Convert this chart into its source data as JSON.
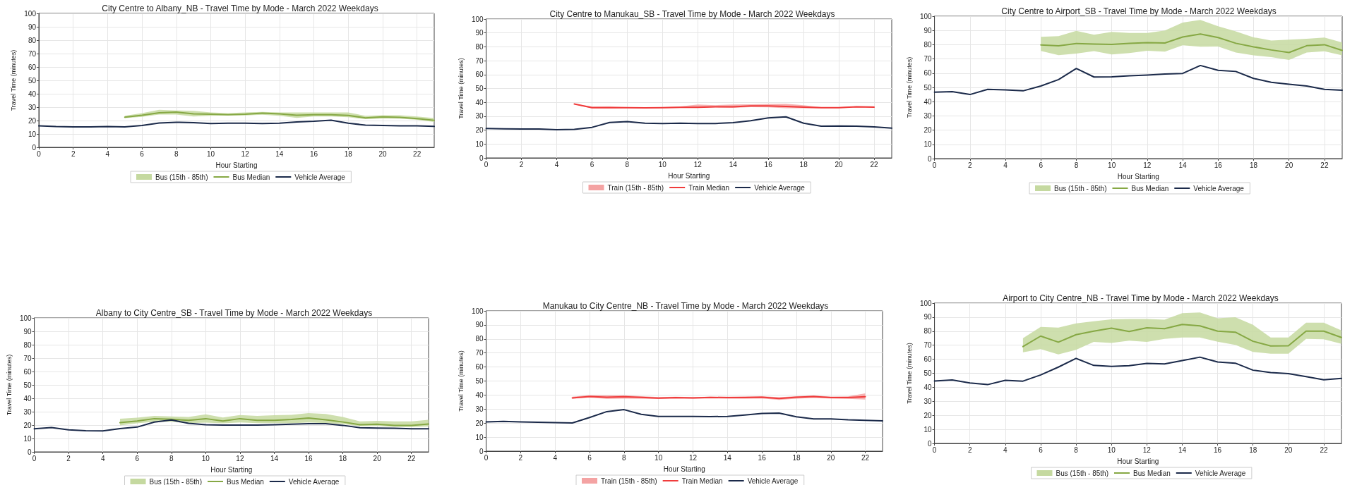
{
  "chart_data": [
    {
      "type": "line",
      "title": "City Centre to Albany_NB - Travel Time by Mode - March 2022 Weekdays",
      "xlabel": "Hour Starting",
      "ylabel": "Travel Time (minutes)",
      "xlim": [
        0,
        23
      ],
      "xticks": [
        0,
        2,
        4,
        6,
        8,
        10,
        12,
        14,
        16,
        18,
        20,
        22
      ],
      "ylim": [
        0,
        100
      ],
      "yticks": [
        0,
        10,
        20,
        30,
        40,
        50,
        60,
        70,
        80,
        90,
        100
      ],
      "grid": true,
      "legend": "bottom",
      "x": [
        0,
        1,
        2,
        3,
        4,
        5,
        6,
        7,
        8,
        9,
        10,
        11,
        12,
        13,
        14,
        15,
        16,
        17,
        18,
        19,
        20,
        21,
        22,
        23
      ],
      "series": [
        {
          "name": "Bus (15th - 85th)",
          "type": "area",
          "color": "#c5d9a0",
          "x": [
            5,
            6,
            7,
            8,
            9,
            10,
            11,
            12,
            13,
            14,
            15,
            16,
            17,
            18,
            19,
            20,
            21,
            22,
            23
          ],
          "values": [
            null,
            null,
            null,
            null,
            null,
            null,
            null,
            null,
            null,
            null,
            null,
            null,
            null,
            null,
            null,
            null,
            null,
            null,
            null
          ],
          "lower": [
            21.8,
            22.8,
            24.5,
            24.5,
            23,
            23.5,
            23.8,
            23.8,
            24.3,
            23.5,
            22,
            23,
            23,
            22.5,
            21,
            21.5,
            21.5,
            20.5,
            19
          ],
          "upper": [
            23.5,
            25.5,
            28,
            27.5,
            27.3,
            26,
            25.5,
            26,
            26.5,
            26,
            26,
            26,
            26,
            26,
            23.5,
            24,
            24,
            23,
            21.8
          ]
        },
        {
          "name": "Bus Median",
          "type": "line",
          "color": "#86a844",
          "x": [
            5,
            6,
            7,
            8,
            9,
            10,
            11,
            12,
            13,
            14,
            15,
            16,
            17,
            18,
            19,
            20,
            21,
            22,
            23
          ],
          "values": [
            22.5,
            24,
            25.8,
            26.3,
            25,
            24.8,
            24.4,
            24.8,
            25.5,
            25,
            24,
            24.4,
            24.4,
            23.8,
            22,
            22.8,
            22.4,
            21.5,
            20.2
          ]
        },
        {
          "name": "Vehicle Average",
          "type": "line",
          "color": "#1b2a4a",
          "values": [
            16,
            15.5,
            15.3,
            15.3,
            15.5,
            15.2,
            16.3,
            18.2,
            18.7,
            18.4,
            17.8,
            18,
            18,
            17.8,
            18,
            19,
            19.5,
            20.3,
            18,
            16.6,
            16.3,
            16.1,
            16,
            15.6
          ]
        }
      ]
    },
    {
      "type": "line",
      "title": "City Centre to Manukau_SB - Travel Time by Mode - March 2022 Weekdays",
      "xlabel": "Hour Starting",
      "ylabel": "Travel Time (minutes)",
      "xlim": [
        0,
        23
      ],
      "xticks": [
        0,
        2,
        4,
        6,
        8,
        10,
        12,
        14,
        16,
        18,
        20,
        22
      ],
      "ylim": [
        0,
        100
      ],
      "yticks": [
        0,
        10,
        20,
        30,
        40,
        50,
        60,
        70,
        80,
        90,
        100
      ],
      "grid": true,
      "legend": "bottom",
      "x": [
        0,
        1,
        2,
        3,
        4,
        5,
        6,
        7,
        8,
        9,
        10,
        11,
        12,
        13,
        14,
        15,
        16,
        17,
        18,
        19,
        20,
        21,
        22,
        23
      ],
      "series": [
        {
          "name": "Train (15th - 85th)",
          "type": "area",
          "color": "#f4a3a3",
          "x": [
            5,
            6,
            7,
            8,
            9,
            10,
            11,
            12,
            13,
            14,
            15,
            16,
            17,
            18,
            19,
            20,
            21,
            22
          ],
          "values": [
            null,
            null,
            null,
            null,
            null,
            null,
            null,
            null,
            null,
            null,
            null,
            null,
            null,
            null,
            null,
            null,
            null,
            null
          ],
          "lower": [
            38.6,
            35.6,
            35.5,
            35.8,
            35.8,
            35.8,
            36,
            36,
            36.4,
            36,
            36.6,
            36.4,
            35.8,
            35.8,
            35.8,
            35.8,
            36.3,
            36.2
          ],
          "upper": [
            38.8,
            37,
            37.2,
            36.6,
            36.2,
            36.5,
            37,
            38.5,
            38,
            38.4,
            38.6,
            38.8,
            39,
            37.9,
            36.6,
            36.5,
            37.2,
            37.2
          ]
        },
        {
          "name": "Train Median",
          "type": "line",
          "color": "#f03c3c",
          "x": [
            5,
            6,
            7,
            8,
            9,
            10,
            11,
            12,
            13,
            14,
            15,
            16,
            17,
            18,
            19,
            20,
            21,
            22
          ],
          "values": [
            38.8,
            36.2,
            36.2,
            36.2,
            36,
            36.2,
            36.4,
            36.4,
            36.8,
            36.8,
            37.4,
            37.4,
            37,
            36.6,
            36.2,
            36.2,
            36.8,
            36.6
          ]
        },
        {
          "name": "Vehicle Average",
          "type": "line",
          "color": "#1b2a4a",
          "values": [
            21.2,
            21,
            20.8,
            20.8,
            20.3,
            20.6,
            22,
            25.5,
            26.2,
            25,
            24.8,
            25,
            24.8,
            24.8,
            25.4,
            26.8,
            28.8,
            29.6,
            25,
            22.8,
            23,
            22.8,
            22.3,
            21.4
          ]
        }
      ]
    },
    {
      "type": "line",
      "title": "City Centre to Airport_SB - Travel Time by Mode - March 2022 Weekdays",
      "xlabel": "Hour Starting",
      "ylabel": "Travel Time (minutes)",
      "xlim": [
        0,
        23
      ],
      "xticks": [
        0,
        2,
        4,
        6,
        8,
        10,
        12,
        14,
        16,
        18,
        20,
        22
      ],
      "ylim": [
        0,
        100
      ],
      "yticks": [
        0,
        10,
        20,
        30,
        40,
        50,
        60,
        70,
        80,
        90,
        100
      ],
      "grid": true,
      "legend": "bottom",
      "x": [
        0,
        1,
        2,
        3,
        4,
        5,
        6,
        7,
        8,
        9,
        10,
        11,
        12,
        13,
        14,
        15,
        16,
        17,
        18,
        19,
        20,
        21,
        22,
        23
      ],
      "series": [
        {
          "name": "Bus (15th - 85th)",
          "type": "area",
          "color": "#c5d9a0",
          "x": [
            6,
            7,
            8,
            9,
            10,
            11,
            12,
            13,
            14,
            15,
            16,
            17,
            18,
            19,
            20,
            21,
            22,
            23
          ],
          "values": [
            null,
            null,
            null,
            null,
            null,
            null,
            null,
            null,
            null,
            null,
            null,
            null,
            null,
            null,
            null,
            null,
            null,
            null
          ],
          "lower": [
            75.6,
            72.6,
            73.8,
            75.5,
            73.2,
            74.1,
            75.8,
            75.1,
            79.6,
            78.6,
            78.7,
            74.5,
            72.5,
            71.3,
            69.3,
            74.5,
            75.4,
            72.5
          ],
          "upper": [
            85.5,
            86,
            89.7,
            87,
            89,
            88.3,
            88.3,
            90,
            95.5,
            97.4,
            93,
            89.3,
            85.2,
            82.9,
            83.5,
            84.2,
            85,
            81.5
          ]
        },
        {
          "name": "Bus Median",
          "type": "line",
          "color": "#86a844",
          "x": [
            6,
            7,
            8,
            9,
            10,
            11,
            12,
            13,
            14,
            15,
            16,
            17,
            18,
            19,
            20,
            21,
            22,
            23
          ],
          "values": [
            79.8,
            79.2,
            80.8,
            80.4,
            80.2,
            81,
            81.4,
            81.2,
            85.4,
            87.5,
            85,
            81,
            78.5,
            76.3,
            74.5,
            79.3,
            80,
            76
          ]
        },
        {
          "name": "Vehicle Average",
          "type": "line",
          "color": "#1b2a4a",
          "values": [
            46.7,
            47,
            45,
            48.6,
            48.3,
            47.6,
            51,
            55.5,
            63.3,
            57.3,
            57.4,
            58.2,
            58.7,
            59.4,
            59.8,
            65.4,
            62,
            61.2,
            56.3,
            53.6,
            52.2,
            51,
            48.6,
            48
          ]
        }
      ]
    },
    {
      "type": "line",
      "title": "Albany to City Centre_SB - Travel Time by Mode - March 2022 Weekdays",
      "xlabel": "Hour Starting",
      "ylabel": "Travel Time (minutes)",
      "xlim": [
        0,
        23
      ],
      "xticks": [
        0,
        2,
        4,
        6,
        8,
        10,
        12,
        14,
        16,
        18,
        20,
        22
      ],
      "ylim": [
        0,
        100
      ],
      "yticks": [
        0,
        10,
        20,
        30,
        40,
        50,
        60,
        70,
        80,
        90,
        100
      ],
      "grid": true,
      "legend": "bottom",
      "x": [
        0,
        1,
        2,
        3,
        4,
        5,
        6,
        7,
        8,
        9,
        10,
        11,
        12,
        13,
        14,
        15,
        16,
        17,
        18,
        19,
        20,
        21,
        22,
        23
      ],
      "series": [
        {
          "name": "Bus (15th - 85th)",
          "type": "area",
          "color": "#c5d9a0",
          "x": [
            5,
            6,
            7,
            8,
            9,
            10,
            11,
            12,
            13,
            14,
            15,
            16,
            17,
            18,
            19,
            20,
            21,
            22,
            23
          ],
          "values": [
            null,
            null,
            null,
            null,
            null,
            null,
            null,
            null,
            null,
            null,
            null,
            null,
            null,
            null,
            null,
            null,
            null,
            null,
            null
          ],
          "lower": [
            19.8,
            21.3,
            22.5,
            22.5,
            21.5,
            21.8,
            21.3,
            22,
            21.5,
            21.5,
            21.3,
            22,
            21.5,
            20.8,
            19.2,
            19.4,
            18.7,
            18.5,
            19
          ],
          "upper": [
            24.8,
            25.5,
            26.8,
            26.5,
            26,
            28,
            25.6,
            27.5,
            26.8,
            27.4,
            27.6,
            29,
            28.3,
            26,
            22.7,
            23.2,
            22.7,
            22.7,
            24
          ]
        },
        {
          "name": "Bus Median",
          "type": "line",
          "color": "#86a844",
          "x": [
            5,
            6,
            7,
            8,
            9,
            10,
            11,
            12,
            13,
            14,
            15,
            16,
            17,
            18,
            19,
            20,
            21,
            22,
            23
          ],
          "values": [
            21.8,
            23,
            24.8,
            24.3,
            23.6,
            24.8,
            23,
            24.8,
            23.6,
            23.6,
            24.2,
            25.3,
            24,
            22.3,
            20.3,
            20.7,
            19.7,
            19.7,
            20.8
          ]
        },
        {
          "name": "Vehicle Average",
          "type": "line",
          "color": "#1b2a4a",
          "values": [
            17.2,
            18.2,
            16.4,
            15.8,
            15.7,
            17.4,
            18.5,
            22.2,
            23.8,
            21.3,
            20.2,
            20,
            20,
            20,
            20.2,
            20.6,
            21,
            21,
            19.8,
            18,
            17.8,
            17.6,
            17.2,
            17.2
          ]
        }
      ]
    },
    {
      "type": "line",
      "title": "Manukau to City Centre_NB - Travel Time by Mode - March 2022 Weekdays",
      "xlabel": "Hour Starting",
      "ylabel": "Travel Time (minutes)",
      "xlim": [
        0,
        23
      ],
      "xticks": [
        0,
        2,
        4,
        6,
        8,
        10,
        12,
        14,
        16,
        18,
        20,
        22
      ],
      "ylim": [
        0,
        100
      ],
      "yticks": [
        0,
        10,
        20,
        30,
        40,
        50,
        60,
        70,
        80,
        90,
        100
      ],
      "grid": true,
      "legend": "bottom",
      "x": [
        0,
        1,
        2,
        3,
        4,
        5,
        6,
        7,
        8,
        9,
        10,
        11,
        12,
        13,
        14,
        15,
        16,
        17,
        18,
        19,
        20,
        21,
        22,
        23
      ],
      "series": [
        {
          "name": "Train (15th - 85th)",
          "type": "area",
          "color": "#f4a3a3",
          "x": [
            5,
            6,
            7,
            8,
            9,
            10,
            11,
            12,
            13,
            14,
            15,
            16,
            17,
            18,
            19,
            20,
            21,
            22
          ],
          "values": [
            null,
            null,
            null,
            null,
            null,
            null,
            null,
            null,
            null,
            null,
            null,
            null,
            null,
            null,
            null,
            null,
            null,
            null
          ],
          "lower": [
            37.5,
            38.2,
            37.3,
            37.5,
            37.4,
            37.2,
            37.5,
            37.4,
            37.6,
            37.5,
            37.5,
            37.6,
            36.6,
            37.5,
            38,
            37.6,
            37.3,
            36.8
          ],
          "upper": [
            38.8,
            40,
            39.8,
            39.8,
            39.2,
            38.6,
            38.8,
            38.6,
            38.8,
            38.8,
            39.1,
            39.2,
            38.5,
            39.2,
            39.7,
            38.9,
            39.1,
            41.2
          ]
        },
        {
          "name": "Train Median",
          "type": "line",
          "color": "#f03c3c",
          "x": [
            5,
            6,
            7,
            8,
            9,
            10,
            11,
            12,
            13,
            14,
            15,
            16,
            17,
            18,
            19,
            20,
            21,
            22
          ],
          "values": [
            38,
            39,
            38.5,
            38.8,
            38.3,
            37.8,
            38.2,
            38,
            38.3,
            38.2,
            38.2,
            38.4,
            37.6,
            38.4,
            39,
            38.2,
            38.2,
            38.8
          ]
        },
        {
          "name": "Vehicle Average",
          "type": "line",
          "color": "#1b2a4a",
          "values": [
            20.8,
            21.2,
            20.9,
            20.6,
            20.3,
            20.1,
            24,
            28.2,
            29.6,
            26.3,
            24.8,
            24.8,
            24.7,
            24.6,
            24.8,
            25.8,
            26.9,
            27.1,
            24.5,
            23,
            23,
            22.3,
            22,
            21.6
          ]
        }
      ]
    },
    {
      "type": "line",
      "title": "Airport to City Centre_NB - Travel Time by Mode - March 2022 Weekdays",
      "xlabel": "Hour Starting",
      "ylabel": "Travel Time (minutes)",
      "xlim": [
        0,
        23
      ],
      "xticks": [
        0,
        2,
        4,
        6,
        8,
        10,
        12,
        14,
        16,
        18,
        20,
        22
      ],
      "ylim": [
        0,
        100
      ],
      "yticks": [
        0,
        10,
        20,
        30,
        40,
        50,
        60,
        70,
        80,
        90,
        100
      ],
      "grid": true,
      "legend": "bottom",
      "x": [
        0,
        1,
        2,
        3,
        4,
        5,
        6,
        7,
        8,
        9,
        10,
        11,
        12,
        13,
        14,
        15,
        16,
        17,
        18,
        19,
        20,
        21,
        22,
        23
      ],
      "series": [
        {
          "name": "Bus (15th - 85th)",
          "type": "area",
          "color": "#c5d9a0",
          "x": [
            5,
            6,
            7,
            8,
            9,
            10,
            11,
            12,
            13,
            14,
            15,
            16,
            17,
            18,
            19,
            20,
            21,
            22,
            23
          ],
          "values": [
            null,
            null,
            null,
            null,
            null,
            null,
            null,
            null,
            null,
            null,
            null,
            null,
            null,
            null,
            null,
            null,
            null,
            null,
            null
          ],
          "lower": [
            65,
            67.2,
            63.4,
            66.7,
            72.3,
            71.6,
            73.3,
            72.4,
            74.5,
            75.5,
            75.5,
            72.5,
            70.2,
            65.2,
            64,
            64,
            74.5,
            74.2,
            71
          ],
          "upper": [
            75,
            83,
            82.5,
            85.5,
            87,
            88.5,
            88.7,
            88.7,
            88.2,
            92.8,
            93.4,
            89.2,
            90,
            84.5,
            75.5,
            75.5,
            86,
            86,
            80.5
          ]
        },
        {
          "name": "Bus Median",
          "type": "line",
          "color": "#86a844",
          "x": [
            5,
            6,
            7,
            8,
            9,
            10,
            11,
            12,
            13,
            14,
            15,
            16,
            17,
            18,
            19,
            20,
            21,
            22,
            23
          ],
          "values": [
            69,
            76.5,
            72.2,
            77.5,
            80,
            82.2,
            79.8,
            82.4,
            81.8,
            84.8,
            83.8,
            80,
            79.3,
            72.8,
            69.5,
            69.6,
            80,
            80,
            75.5
          ]
        },
        {
          "name": "Vehicle Average",
          "type": "line",
          "color": "#1b2a4a",
          "values": [
            44.5,
            45.2,
            43.1,
            41.9,
            45,
            44.4,
            48.8,
            54.4,
            60.6,
            55.6,
            54.9,
            55.4,
            57,
            56.7,
            59,
            61.5,
            58,
            57.2,
            52.2,
            50.5,
            49.7,
            47.6,
            45.4,
            46.3
          ]
        }
      ]
    }
  ]
}
